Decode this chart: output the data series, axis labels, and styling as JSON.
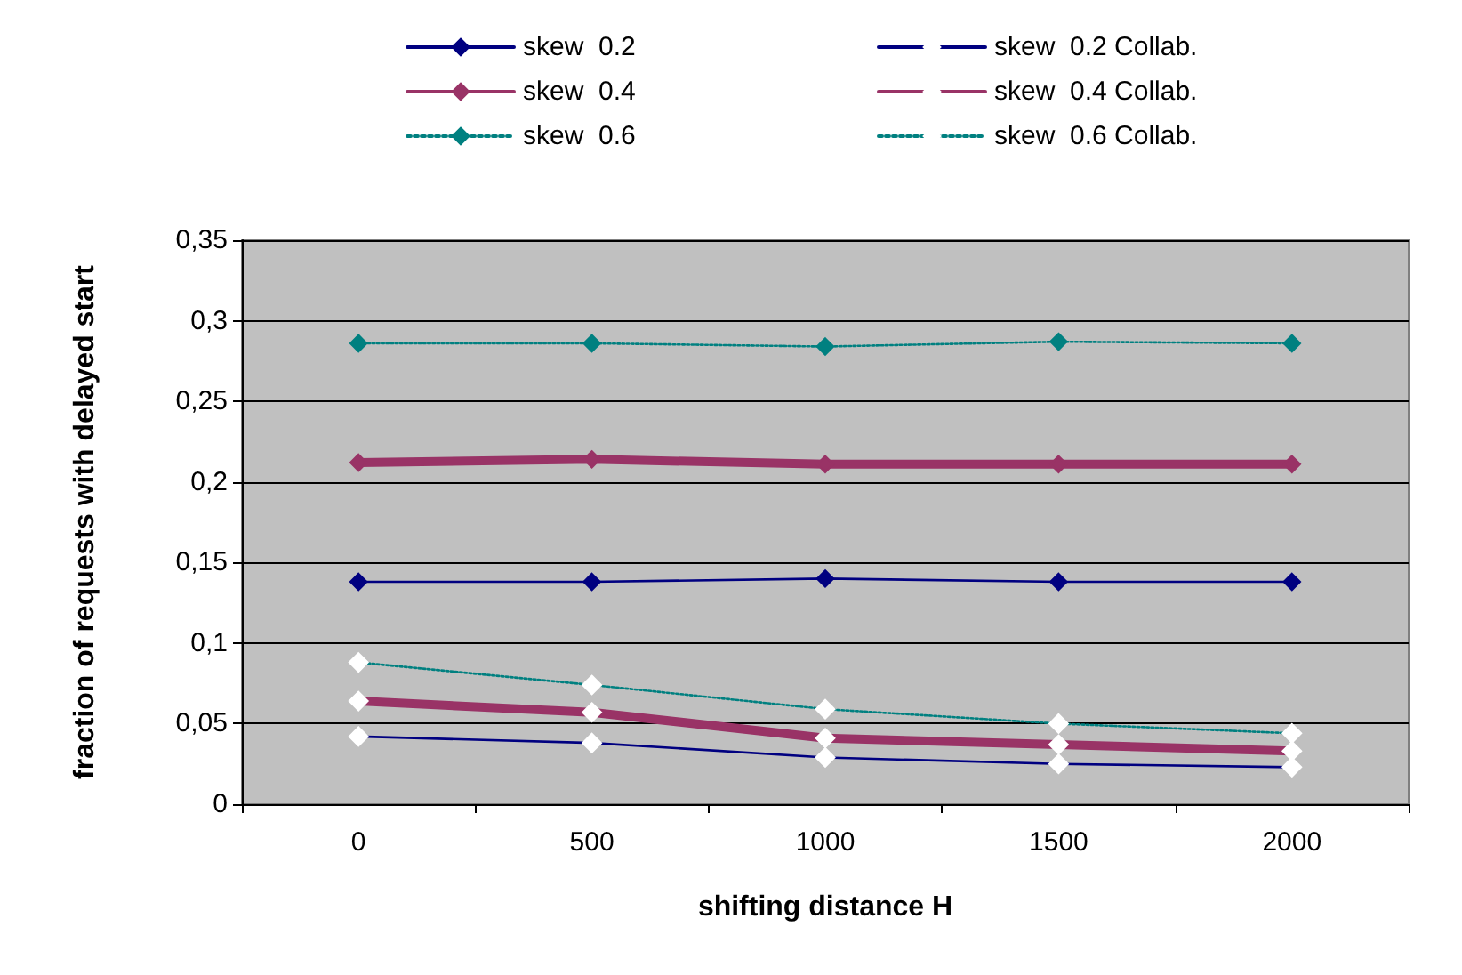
{
  "chart_data": {
    "type": "line",
    "xlabel": "shifting distance H",
    "ylabel": "fraction of requests with delayed start",
    "categories": [
      "0",
      "500",
      "1000",
      "1500",
      "2000"
    ],
    "series": [
      {
        "name": "skew  0.2",
        "color": "#000080",
        "values": [
          0.138,
          0.138,
          0.14,
          0.138,
          0.138
        ]
      },
      {
        "name": "skew  0.2 Collab.",
        "color": "#000080",
        "values": [
          0.042,
          0.038,
          0.029,
          0.025,
          0.023
        ]
      },
      {
        "name": "skew  0.4",
        "color": "#993366",
        "values": [
          0.212,
          0.214,
          0.211,
          0.211,
          0.211
        ]
      },
      {
        "name": "skew  0.4 Collab.",
        "color": "#993366",
        "values": [
          0.064,
          0.057,
          0.041,
          0.037,
          0.033
        ]
      },
      {
        "name": "skew  0.6",
        "color": "#008080",
        "line_style": "dotted",
        "values": [
          0.286,
          0.286,
          0.284,
          0.287,
          0.286
        ]
      },
      {
        "name": "skew  0.6 Collab.",
        "color": "#008080",
        "line_style": "dotted",
        "values": [
          0.088,
          0.074,
          0.059,
          0.05,
          0.044
        ]
      }
    ],
    "ylim": [
      0,
      0.35
    ],
    "yticks": [
      {
        "value": 0,
        "label": "0"
      },
      {
        "value": 0.05,
        "label": "0,05"
      },
      {
        "value": 0.1,
        "label": "0,1"
      },
      {
        "value": 0.15,
        "label": "0,15"
      },
      {
        "value": 0.2,
        "label": "0,2"
      },
      {
        "value": 0.25,
        "label": "0,25"
      },
      {
        "value": 0.3,
        "label": "0,3"
      },
      {
        "value": 0.35,
        "label": "0,35"
      }
    ],
    "grid": "y",
    "legend": "top",
    "marker": "diamond"
  }
}
